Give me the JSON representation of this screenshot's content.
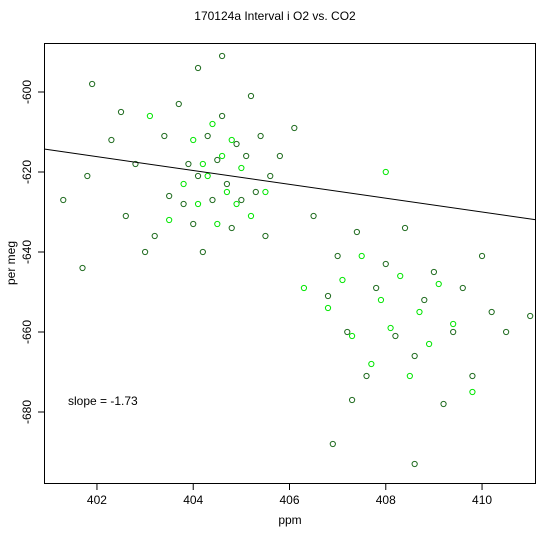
{
  "chart_data": {
    "type": "scatter",
    "title": "170124a   Interval i O2 vs. CO2",
    "xlabel": "ppm",
    "ylabel": "per meg",
    "xlim": [
      40.9,
      411.1
    ],
    "ylim": [
      -698,
      -588
    ],
    "xticks": [
      402,
      404,
      406,
      408,
      410
    ],
    "yticks": [
      -680,
      -660,
      -640,
      -620,
      -600
    ],
    "grid": false,
    "legend": "none",
    "annotation": "slope =  -1.73",
    "fit_line": {
      "slope": -1.73,
      "intercept": 79.3
    },
    "colors": {
      "series_dark": "#1f6b1f",
      "series_bright": "#00e600",
      "fit_line": "#000000"
    },
    "series": [
      {
        "color_key": "series_dark",
        "x": [
          401.3,
          401.7,
          401.8,
          401.9,
          402.3,
          402.5,
          402.6,
          402.8,
          403.0,
          403.2,
          403.4,
          403.5,
          403.7,
          403.8,
          403.9,
          404.0,
          404.1,
          404.1,
          404.2,
          404.3,
          404.4,
          404.5,
          404.6,
          404.6,
          404.7,
          404.8,
          404.9,
          405.0,
          405.1,
          405.2,
          405.3,
          405.4,
          405.5,
          405.6,
          405.8,
          406.1,
          406.5,
          406.8,
          407.0,
          407.2,
          407.4,
          407.6,
          407.8,
          408.0,
          408.2,
          408.4,
          408.6,
          408.8,
          409.0,
          409.2,
          409.4,
          409.6,
          409.8,
          410.0,
          410.2,
          410.5,
          411.0,
          406.9,
          407.3,
          408.6
        ],
        "y": [
          -627,
          -644,
          -621,
          -598,
          -612,
          -605,
          -631,
          -618,
          -640,
          -636,
          -611,
          -626,
          -603,
          -628,
          -618,
          -633,
          -594,
          -621,
          -640,
          -611,
          -627,
          -617,
          -591,
          -606,
          -623,
          -634,
          -613,
          -627,
          -616,
          -601,
          -625,
          -611,
          -636,
          -621,
          -616,
          -609,
          -631,
          -651,
          -641,
          -660,
          -635,
          -671,
          -649,
          -643,
          -661,
          -634,
          -666,
          -652,
          -645,
          -678,
          -660,
          -649,
          -671,
          -641,
          -655,
          -660,
          -656,
          -688,
          -677,
          -693
        ]
      },
      {
        "color_key": "series_bright",
        "x": [
          403.1,
          403.5,
          403.8,
          404.0,
          404.1,
          404.2,
          404.3,
          404.4,
          404.5,
          404.6,
          404.7,
          404.8,
          404.9,
          405.0,
          405.2,
          405.5,
          406.3,
          406.8,
          407.1,
          407.3,
          407.5,
          407.7,
          407.9,
          408.0,
          408.1,
          408.3,
          408.5,
          408.7,
          408.9,
          409.1,
          409.4,
          409.8
        ],
        "y": [
          -606,
          -632,
          -623,
          -612,
          -628,
          -618,
          -621,
          -608,
          -633,
          -616,
          -625,
          -612,
          -628,
          -619,
          -631,
          -625,
          -649,
          -654,
          -647,
          -661,
          -641,
          -668,
          -652,
          -620,
          -659,
          -646,
          -671,
          -655,
          -663,
          -648,
          -658,
          -675
        ]
      }
    ]
  }
}
